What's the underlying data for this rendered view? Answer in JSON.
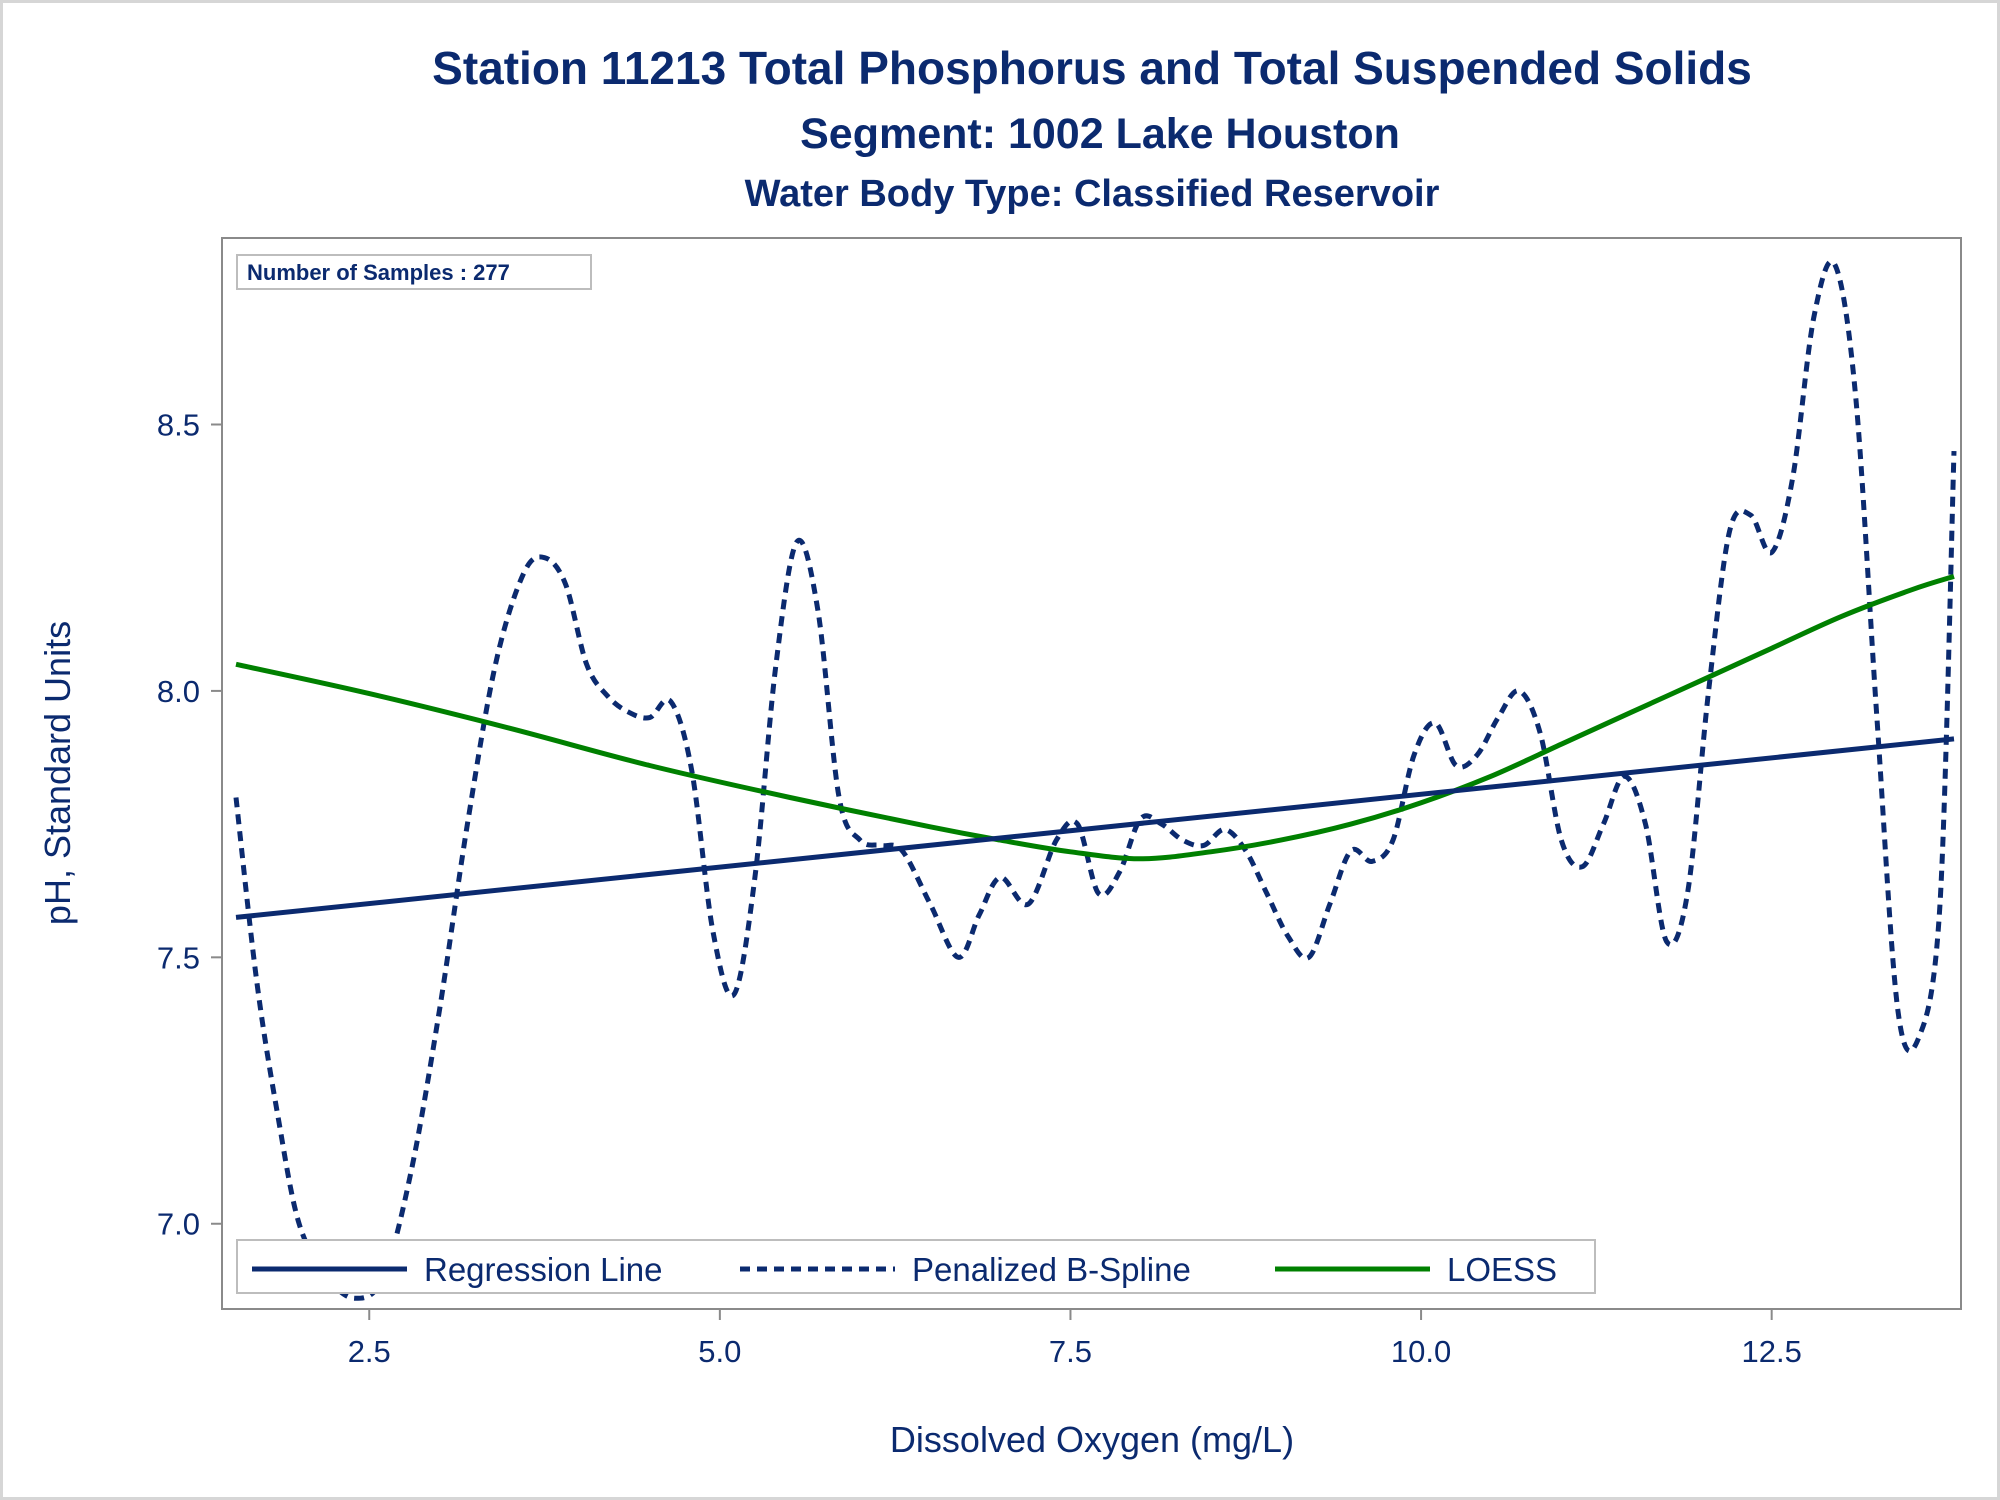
{
  "chart_data": {
    "type": "line",
    "title": "Station 11213  Total Phosphorus and Total Suspended Solids",
    "subtitle": "Segment: 1002  Lake Houston",
    "subtitle2": "Water Body Type: Classified Reservoir",
    "xlabel": "Dissolved Oxygen (mg/L)",
    "ylabel": "pH, Standard Units",
    "xlim": [
      1.45,
      13.85
    ],
    "ylim": [
      6.84,
      8.85
    ],
    "xticks": [
      2.5,
      5.0,
      7.5,
      10.0,
      12.5
    ],
    "xtick_labels": [
      "2.5",
      "5.0",
      "7.5",
      "10.0",
      "12.5"
    ],
    "yticks": [
      7.0,
      7.5,
      8.0,
      8.5
    ],
    "ytick_labels": [
      "7.0",
      "7.5",
      "8.0",
      "8.5"
    ],
    "annotation": "Number of Samples : 277",
    "legend_position": "bottom-left inside",
    "grid": false,
    "series": [
      {
        "name": "Regression Line",
        "style": "solid",
        "color": "#0b2a6f",
        "x": [
          1.55,
          13.8
        ],
        "y": [
          7.575,
          7.91
        ]
      },
      {
        "name": "Penalized B-Spline",
        "style": "dashed",
        "color": "#0b2a6f",
        "x": [
          1.55,
          1.7,
          1.85,
          2.0,
          2.2,
          2.4,
          2.6,
          2.8,
          3.0,
          3.2,
          3.4,
          3.6,
          3.75,
          3.9,
          4.05,
          4.2,
          4.35,
          4.5,
          4.65,
          4.8,
          4.95,
          5.1,
          5.25,
          5.4,
          5.55,
          5.7,
          5.85,
          6.0,
          6.15,
          6.3,
          6.5,
          6.7,
          6.85,
          7.0,
          7.2,
          7.4,
          7.55,
          7.7,
          7.85,
          8.0,
          8.15,
          8.3,
          8.45,
          8.6,
          8.75,
          8.9,
          9.05,
          9.2,
          9.35,
          9.5,
          9.65,
          9.8,
          9.95,
          10.1,
          10.25,
          10.4,
          10.55,
          10.7,
          10.85,
          11.0,
          11.15,
          11.3,
          11.45,
          11.6,
          11.75,
          11.9,
          12.05,
          12.2,
          12.35,
          12.5,
          12.65,
          12.8,
          12.95,
          13.1,
          13.25,
          13.4,
          13.55,
          13.7,
          13.8
        ],
        "y": [
          7.8,
          7.45,
          7.2,
          7.0,
          6.9,
          6.86,
          6.9,
          7.1,
          7.4,
          7.75,
          8.05,
          8.22,
          8.25,
          8.2,
          8.05,
          7.99,
          7.96,
          7.95,
          7.98,
          7.85,
          7.55,
          7.43,
          7.65,
          8.05,
          8.28,
          8.15,
          7.8,
          7.72,
          7.71,
          7.7,
          7.6,
          7.5,
          7.58,
          7.65,
          7.6,
          7.72,
          7.75,
          7.62,
          7.66,
          7.76,
          7.75,
          7.72,
          7.71,
          7.74,
          7.7,
          7.62,
          7.54,
          7.5,
          7.6,
          7.7,
          7.68,
          7.72,
          7.88,
          7.94,
          7.86,
          7.88,
          7.95,
          8.0,
          7.92,
          7.72,
          7.67,
          7.75,
          7.84,
          7.75,
          7.53,
          7.62,
          8.0,
          8.3,
          8.33,
          8.26,
          8.4,
          8.7,
          8.8,
          8.55,
          7.95,
          7.4,
          7.35,
          7.6,
          8.45
        ]
      },
      {
        "name": "LOESS",
        "style": "solid",
        "color": "#008000",
        "x": [
          1.55,
          2.5,
          3.5,
          4.5,
          5.5,
          6.5,
          7.0,
          7.5,
          8.0,
          8.5,
          9.0,
          9.5,
          10.0,
          10.5,
          11.0,
          11.5,
          12.0,
          12.5,
          13.0,
          13.5,
          13.8
        ],
        "y": [
          8.05,
          7.995,
          7.93,
          7.86,
          7.8,
          7.745,
          7.72,
          7.698,
          7.685,
          7.698,
          7.72,
          7.75,
          7.79,
          7.84,
          7.9,
          7.96,
          8.02,
          8.08,
          8.14,
          8.19,
          8.215
        ]
      }
    ]
  }
}
